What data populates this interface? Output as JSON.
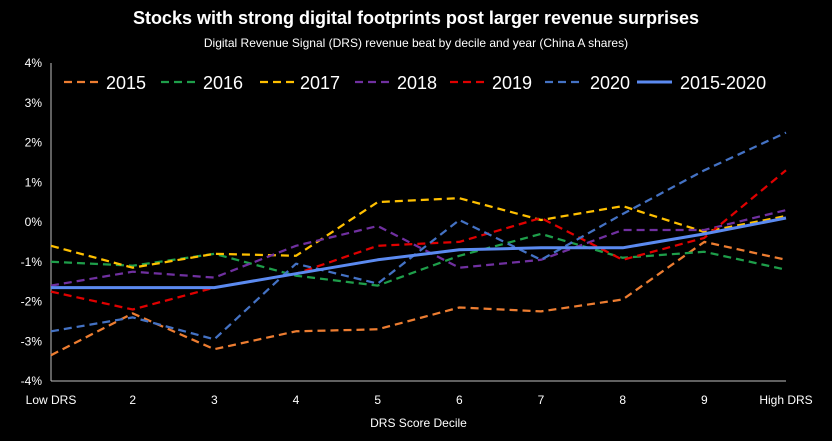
{
  "chart_data": {
    "type": "line",
    "title": "Stocks with strong digital footprints post larger revenue surprises",
    "subtitle": "Digital Revenue Signal (DRS) revenue beat by decile and year (China A shares)",
    "xlabel": "DRS Score Decile",
    "ylabel": "",
    "categories": [
      "Low DRS",
      "2",
      "3",
      "4",
      "5",
      "6",
      "7",
      "8",
      "9",
      "High DRS"
    ],
    "ylim": [
      -4,
      4
    ],
    "yticks": [
      -4,
      -3,
      -2,
      -1,
      0,
      1,
      2,
      3,
      4
    ],
    "ytick_labels": [
      "-4%",
      "-3%",
      "-2%",
      "-1%",
      "0%",
      "1%",
      "2%",
      "3%",
      "4%"
    ],
    "grid": false,
    "legend_position": "top",
    "series": [
      {
        "name": "2015",
        "color": "#ED7D31",
        "dashed": true,
        "values": [
          -3.35,
          -2.3,
          -3.2,
          -2.75,
          -2.7,
          -2.15,
          -2.25,
          -1.95,
          -0.5,
          -0.95
        ]
      },
      {
        "name": "2016",
        "color": "#1E9E4A",
        "dashed": true,
        "values": [
          -1.0,
          -1.1,
          -0.8,
          -1.35,
          -1.6,
          -0.85,
          -0.3,
          -0.9,
          -0.75,
          -1.2
        ]
      },
      {
        "name": "2017",
        "color": "#FFC000",
        "dashed": true,
        "values": [
          -0.6,
          -1.15,
          -0.8,
          -0.85,
          0.5,
          0.6,
          0.05,
          0.4,
          -0.25,
          0.15
        ]
      },
      {
        "name": "2018",
        "color": "#7030A0",
        "dashed": true,
        "values": [
          -1.6,
          -1.25,
          -1.4,
          -0.6,
          -0.1,
          -1.15,
          -0.95,
          -0.2,
          -0.2,
          0.3
        ]
      },
      {
        "name": "2019",
        "color": "#E00000",
        "dashed": true,
        "values": [
          -1.75,
          -2.2,
          -1.65,
          -1.3,
          -0.6,
          -0.5,
          0.1,
          -0.95,
          -0.4,
          1.3
        ]
      },
      {
        "name": "2020",
        "color": "#4472C4",
        "dashed": true,
        "values": [
          -2.75,
          -2.4,
          -2.95,
          -1.05,
          -1.55,
          0.05,
          -0.95,
          0.2,
          1.3,
          2.25
        ]
      },
      {
        "name": "2015-2020",
        "color": "#5B8AF0",
        "dashed": false,
        "values": [
          -1.65,
          -1.65,
          -1.65,
          -1.3,
          -0.95,
          -0.7,
          -0.65,
          -0.65,
          -0.3,
          0.1
        ]
      }
    ]
  }
}
